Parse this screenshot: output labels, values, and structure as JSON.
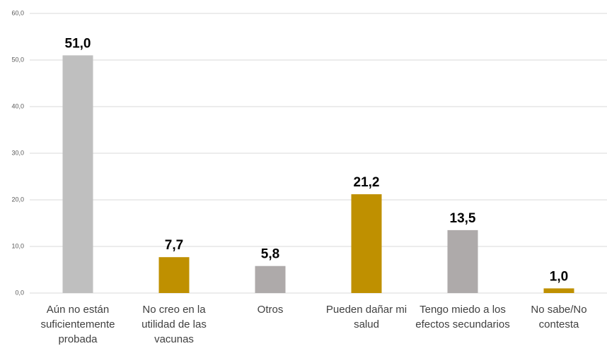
{
  "chart_data": {
    "type": "bar",
    "categories": [
      "Aún no están suficientemente probada",
      "No creo en la utilidad de las vacunas",
      "Otros",
      "Pueden dañar mi salud",
      "Tengo miedo a los efectos secundarios",
      "No sabe/No contesta"
    ],
    "values": [
      51.0,
      7.7,
      5.8,
      21.2,
      13.5,
      1.0
    ],
    "value_labels": [
      "51,0",
      "7,7",
      "5,8",
      "21,2",
      "13,5",
      "1,0"
    ],
    "colors": [
      "#bfbfbf",
      "#bf9000",
      "#aeaaaa",
      "#bf9000",
      "#aeaaaa",
      "#bf9000"
    ],
    "ylim": [
      0,
      60
    ],
    "yticks": [
      {
        "value": 0,
        "label": "0,0"
      },
      {
        "value": 10,
        "label": "10,0"
      },
      {
        "value": 20,
        "label": "20,0"
      },
      {
        "value": 30,
        "label": "30,0"
      },
      {
        "value": 40,
        "label": "40,0"
      },
      {
        "value": 50,
        "label": "50,0"
      },
      {
        "value": 60,
        "label": "60,0"
      }
    ],
    "grid": true
  }
}
